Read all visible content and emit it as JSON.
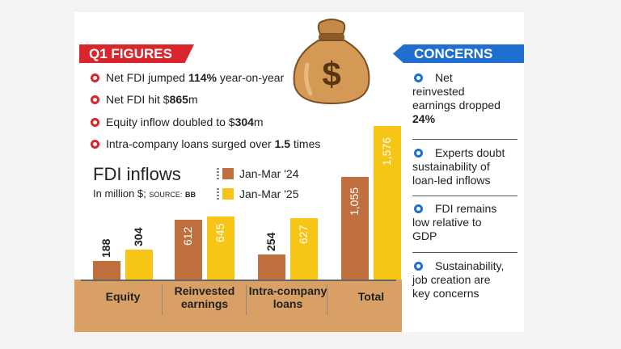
{
  "headers": {
    "q1": "Q1 FIGURES",
    "concerns": "CONCERNS"
  },
  "bullets": [
    {
      "pre": "Net FDI jumped ",
      "bold": "114%",
      "post": " year-on-year"
    },
    {
      "pre": "Net FDI hit $",
      "bold": "865",
      "post": "m"
    },
    {
      "pre": "Equity inflow doubled to $",
      "bold": "304",
      "post": "m"
    },
    {
      "pre": "Intra-company loans surged over ",
      "bold": "1.5",
      "post": " times"
    }
  ],
  "concerns": [
    {
      "lines": [
        "Net",
        "reinvested",
        "earnings dropped"
      ],
      "bold": "24%"
    },
    {
      "lines": [
        "Experts doubt",
        "sustainability of",
        "loan-led inflows"
      ],
      "bold": ""
    },
    {
      "lines": [
        "FDI remains",
        "low relative to",
        "GDP"
      ],
      "bold": ""
    },
    {
      "lines": [
        "Sustainability,",
        "job creation are",
        "key concerns"
      ],
      "bold": ""
    }
  ],
  "icons": {
    "bullet": "arrow-dot-icon",
    "bag": "money-bag-icon"
  },
  "colors": {
    "red": "#d8262c",
    "blue": "#1e6fd0",
    "series1": "#c0703f",
    "series2": "#f7c516",
    "band": "#d9a066"
  },
  "chart_data": {
    "type": "bar",
    "title": "FDI inflows",
    "subtitle": "In million $;",
    "source_label": "SOURCE:",
    "source": "BB",
    "categories": [
      "Equity",
      "Reinvested earnings",
      "Intra-company loans",
      "Total"
    ],
    "category_lines": [
      [
        "Equity"
      ],
      [
        "Reinvested",
        "earnings"
      ],
      [
        "Intra-company",
        "loans"
      ],
      [
        "Total"
      ]
    ],
    "series": [
      {
        "name": "Jan-Mar '24",
        "values": [
          188,
          612,
          254,
          1055
        ]
      },
      {
        "name": "Jan-Mar '25",
        "values": [
          304,
          645,
          627,
          1576
        ]
      }
    ],
    "value_labels": [
      [
        "188",
        "612",
        "254",
        "1,055"
      ],
      [
        "304",
        "645",
        "627",
        "1,576"
      ]
    ],
    "legend": "top"
  }
}
